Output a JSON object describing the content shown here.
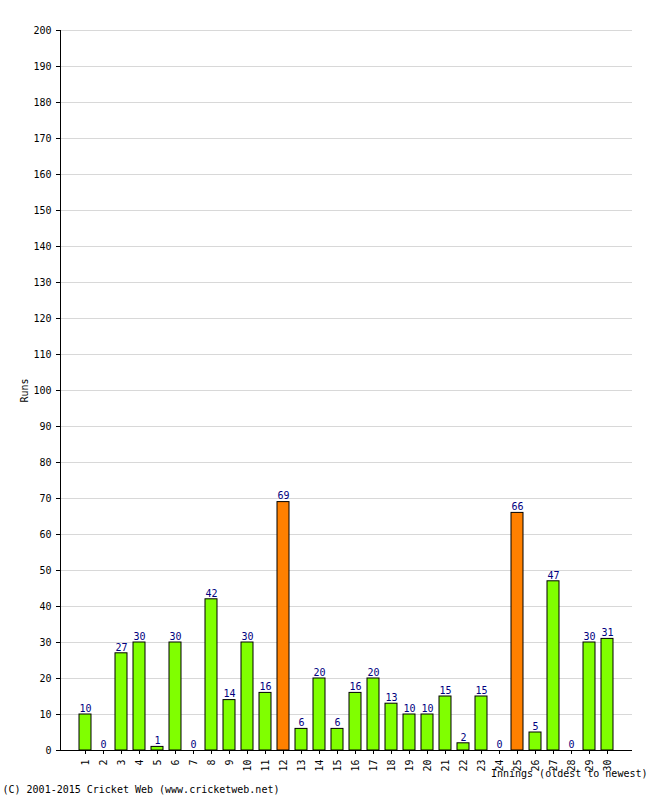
{
  "chart_data": {
    "type": "bar",
    "y_label": "Runs",
    "x_label": "Innings (oldest to newest)",
    "caption": "(C) 2001-2015 Cricket Web (www.cricketweb.net)",
    "categories": [
      "1",
      "2",
      "3",
      "4",
      "5",
      "6",
      "7",
      "8",
      "9",
      "10",
      "11",
      "12",
      "13",
      "14",
      "15",
      "16",
      "17",
      "18",
      "19",
      "20",
      "21",
      "22",
      "23",
      "24",
      "25",
      "26",
      "27",
      "28",
      "29",
      "30"
    ],
    "values": [
      10,
      0,
      27,
      30,
      1,
      30,
      0,
      42,
      14,
      30,
      16,
      69,
      6,
      20,
      6,
      16,
      20,
      13,
      10,
      10,
      15,
      2,
      15,
      0,
      66,
      5,
      47,
      0,
      30,
      31
    ],
    "colors": [
      "#80ff00",
      "#80ff00",
      "#80ff00",
      "#80ff00",
      "#80ff00",
      "#80ff00",
      "#80ff00",
      "#80ff00",
      "#80ff00",
      "#80ff00",
      "#80ff00",
      "#ff8000",
      "#80ff00",
      "#80ff00",
      "#80ff00",
      "#80ff00",
      "#80ff00",
      "#80ff00",
      "#80ff00",
      "#80ff00",
      "#80ff00",
      "#80ff00",
      "#80ff00",
      "#80ff00",
      "#ff8000",
      "#80ff00",
      "#80ff00",
      "#80ff00",
      "#80ff00",
      "#80ff00"
    ],
    "ylim": [
      0,
      200
    ],
    "yticks": [
      0,
      10,
      20,
      30,
      40,
      50,
      60,
      70,
      80,
      90,
      100,
      110,
      120,
      130,
      140,
      150,
      160,
      170,
      180,
      190,
      200
    ],
    "grid": true,
    "data_labels": true
  }
}
